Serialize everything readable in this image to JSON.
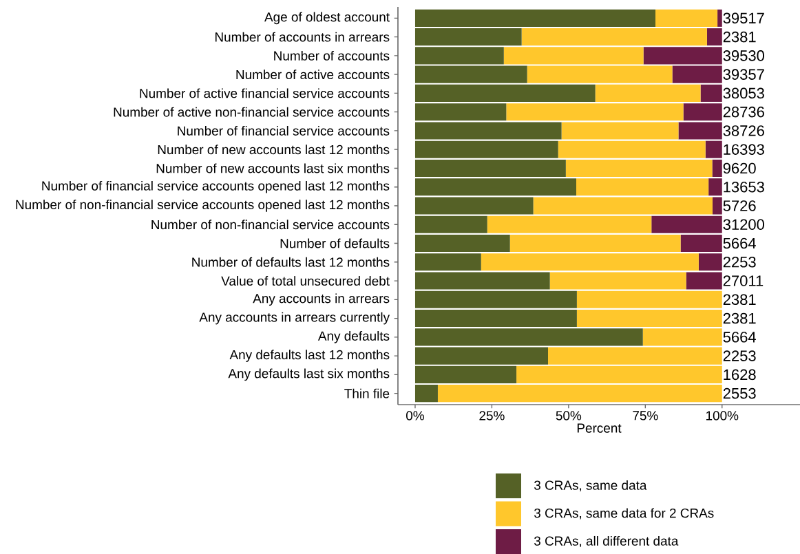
{
  "chart_data": {
    "type": "bar",
    "orientation": "horizontal",
    "stacked": true,
    "xlabel": "Percent",
    "categories": [
      "Age of oldest account",
      "Number of accounts in arrears",
      "Number of accounts",
      "Number of active accounts",
      "Number of active financial service accounts",
      "Number of active non-financial service accounts",
      "Number of financial service accounts",
      "Number of new accounts last 12 months",
      "Number of new accounts last six months",
      "Number of financial service accounts opened last 12 months",
      "Number of non-financial service accounts opened last 12 months",
      "Number of non-financial service accounts",
      "Number of defaults",
      "Number of defaults last 12 months",
      "Value of total unsecured debt",
      "Any accounts in arrears",
      "Any accounts in arrears currently",
      "Any defaults",
      "Any defaults last 12 months",
      "Any defaults last six months",
      "Thin file"
    ],
    "series": [
      {
        "name": "3 CRAs, same data",
        "color": "#556126",
        "values": [
          78.3,
          34.7,
          28.9,
          36.5,
          58.7,
          29.7,
          47.7,
          46.6,
          49.1,
          52.5,
          38.5,
          23.5,
          30.9,
          21.5,
          43.9,
          52.7,
          52.7,
          74.2,
          43.3,
          33.0,
          7.4
        ]
      },
      {
        "name": "3 CRAs, same data for 2 CRAs",
        "color": "#ffc72c",
        "values": [
          20.2,
          60.4,
          45.5,
          47.3,
          34.3,
          57.7,
          38.1,
          48.0,
          47.7,
          43.1,
          58.4,
          53.5,
          55.6,
          70.9,
          44.4,
          47.3,
          47.3,
          25.8,
          56.7,
          67.0,
          92.6
        ]
      },
      {
        "name": "3 CRAs, all different data",
        "color": "#6e1c45",
        "values": [
          1.5,
          4.9,
          25.6,
          16.2,
          7.0,
          12.6,
          14.2,
          5.4,
          3.2,
          4.4,
          3.1,
          23.0,
          13.5,
          7.6,
          11.7,
          0,
          0,
          0,
          0,
          0,
          0
        ]
      }
    ],
    "annotations": [
      "39517",
      "2381",
      "39530",
      "39357",
      "38053",
      "28736",
      "38726",
      "16393",
      "9620",
      "13653",
      "5726",
      "31200",
      "5664",
      "2253",
      "27011",
      "2381",
      "2381",
      "5664",
      "2253",
      "1628",
      "2553"
    ],
    "xlim": [
      -5.6,
      125.4
    ],
    "xticks": [
      {
        "value": 0,
        "label": "0%"
      },
      {
        "value": 25,
        "label": "25%"
      },
      {
        "value": 50,
        "label": "50%"
      },
      {
        "value": 75,
        "label": "75%"
      },
      {
        "value": 100,
        "label": "100%"
      }
    ],
    "grid": false,
    "legend": "bottom"
  }
}
